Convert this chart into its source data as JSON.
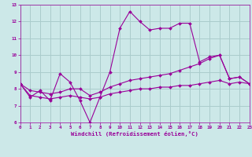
{
  "xlabel": "Windchill (Refroidissement éolien,°C)",
  "bg_color": "#cce8e8",
  "grid_color": "#aacccc",
  "line_color": "#990099",
  "x_data": [
    0,
    1,
    2,
    3,
    4,
    5,
    6,
    7,
    8,
    9,
    10,
    11,
    12,
    13,
    14,
    15,
    16,
    17,
    18,
    19,
    20,
    21,
    22,
    23
  ],
  "y_main": [
    8.3,
    7.5,
    7.9,
    7.3,
    8.9,
    8.4,
    7.3,
    6.0,
    7.5,
    9.0,
    11.6,
    12.6,
    12.0,
    11.5,
    11.6,
    11.6,
    11.9,
    11.9,
    9.6,
    9.9,
    10.0,
    8.6,
    8.7,
    8.3
  ],
  "y_reg1": [
    8.3,
    7.9,
    7.8,
    7.7,
    7.8,
    8.0,
    8.0,
    7.6,
    7.8,
    8.1,
    8.3,
    8.5,
    8.6,
    8.7,
    8.8,
    8.9,
    9.1,
    9.3,
    9.5,
    9.8,
    10.0,
    8.6,
    8.7,
    8.3
  ],
  "y_reg2": [
    8.3,
    7.6,
    7.5,
    7.4,
    7.5,
    7.6,
    7.5,
    7.4,
    7.5,
    7.7,
    7.8,
    7.9,
    8.0,
    8.0,
    8.1,
    8.1,
    8.2,
    8.2,
    8.3,
    8.4,
    8.5,
    8.3,
    8.4,
    8.3
  ],
  "ylim": [
    6.0,
    13.0
  ],
  "xlim": [
    0,
    23
  ],
  "yticks": [
    6,
    7,
    8,
    9,
    10,
    11,
    12,
    13
  ],
  "xticks": [
    0,
    1,
    2,
    3,
    4,
    5,
    6,
    7,
    8,
    9,
    10,
    11,
    12,
    13,
    14,
    15,
    16,
    17,
    18,
    19,
    20,
    21,
    22,
    23
  ]
}
